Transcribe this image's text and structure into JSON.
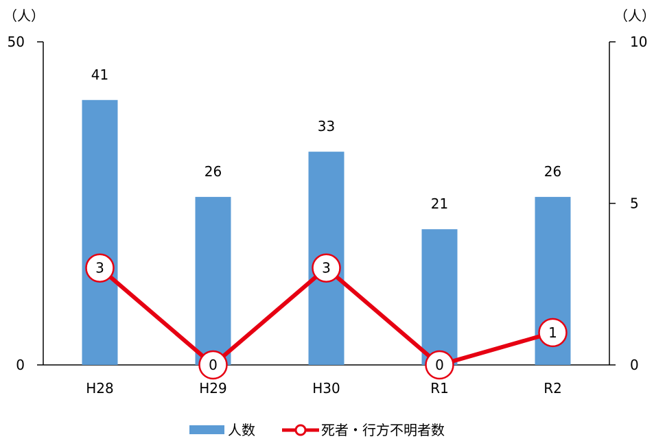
{
  "chart_data": {
    "type": "bar",
    "categories": [
      "H28",
      "H29",
      "H30",
      "R1",
      "R2"
    ],
    "left_axis": {
      "unit": "（人）",
      "range": [
        0,
        50
      ],
      "ticks": [
        "0",
        "50"
      ]
    },
    "right_axis": {
      "unit": "（人）",
      "range": [
        0,
        10
      ],
      "ticks": [
        "0",
        "5",
        "10"
      ]
    },
    "series": [
      {
        "name": "人数",
        "type": "bar",
        "axis": "left",
        "color": "#5B9BD5",
        "values": [
          41,
          26,
          33,
          21,
          26
        ]
      },
      {
        "name": "死者・行方不明者数",
        "type": "line",
        "axis": "right",
        "color": "#E60012",
        "values": [
          3,
          0,
          3,
          0,
          1
        ]
      }
    ],
    "legend_position": "bottom",
    "grid": false
  }
}
